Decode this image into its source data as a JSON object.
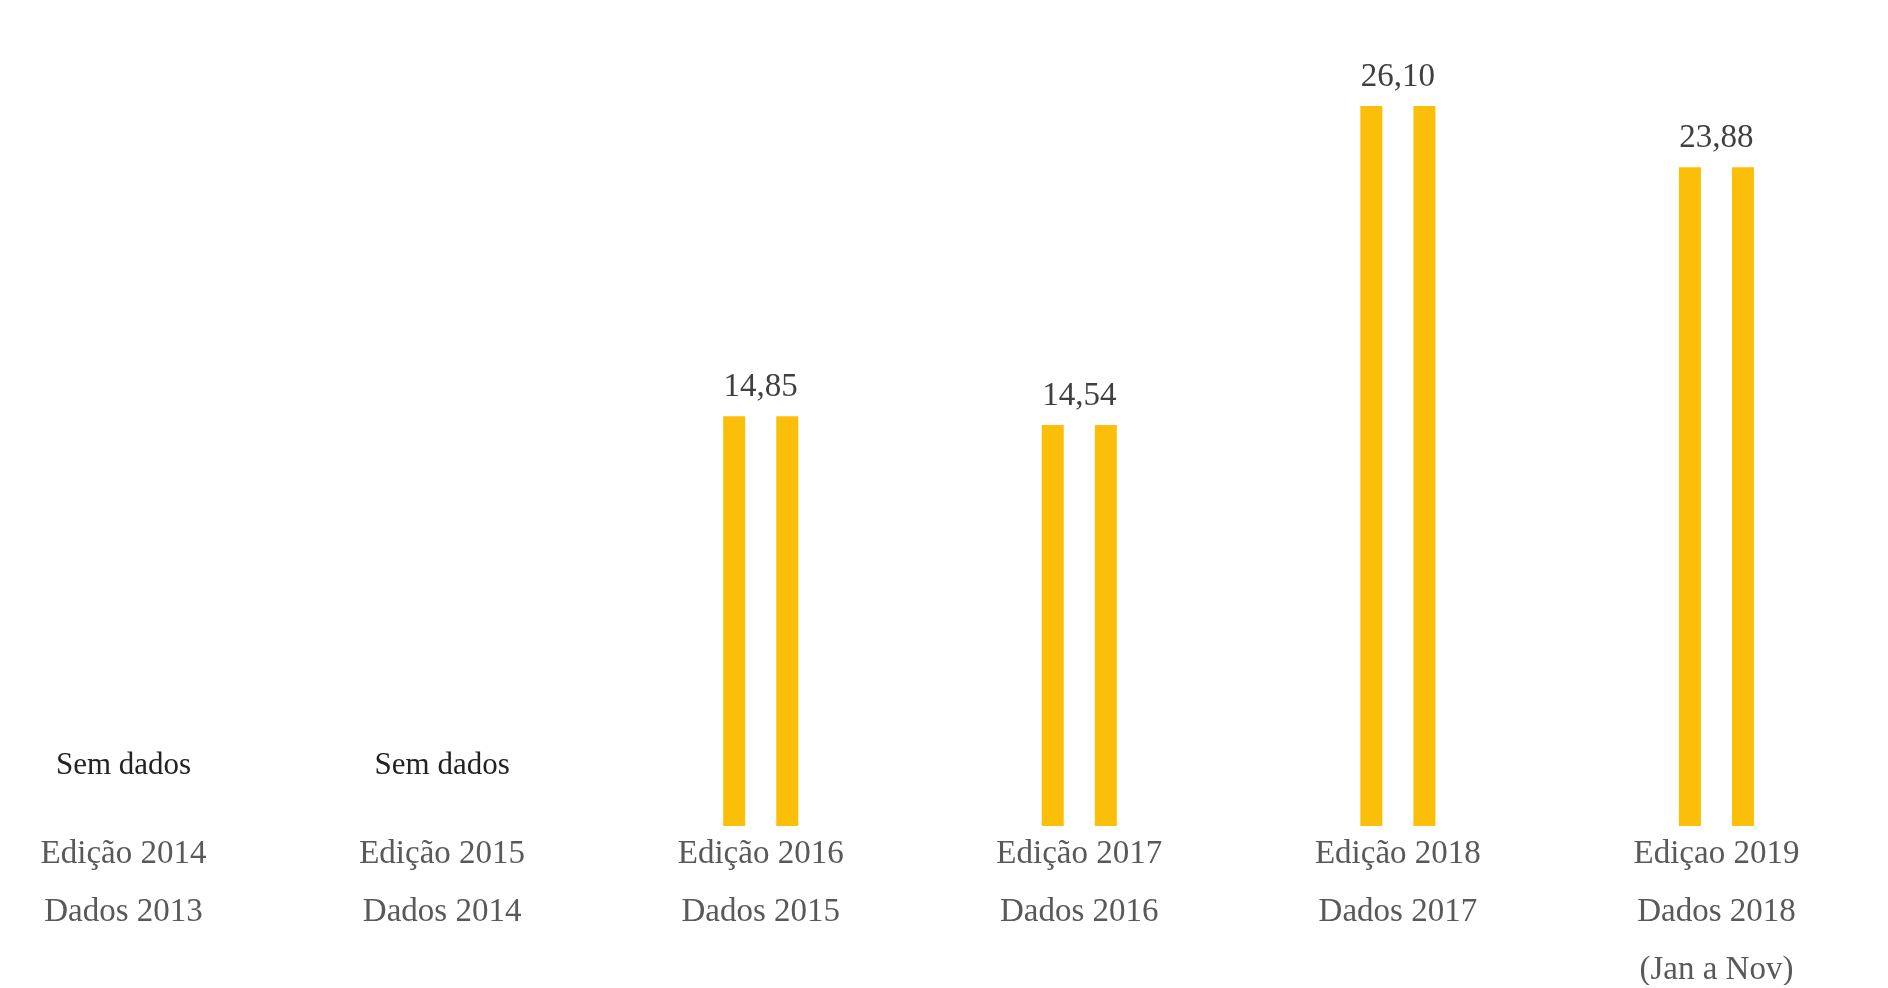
{
  "chart_data": {
    "type": "bar",
    "categories": [
      "Edição 2014\nDados 2013",
      "Edição 2015\nDados 2014",
      "Edição 2016\nDados 2015",
      "Edição 2017\nDados 2016",
      "Edição 2018\nDados 2017",
      "Ediçao 2019\nDados 2018\n(Jan a Nov)"
    ],
    "series": [
      {
        "color": "#fbbf0a",
        "values": [
          null,
          null,
          14.85,
          14.54,
          26.1,
          23.88
        ],
        "value_labels": [
          null,
          null,
          "14,85",
          "14,54",
          "26,10",
          "23,88"
        ]
      },
      {
        "color": "#fbbf0a",
        "values": [
          null,
          null,
          14.85,
          14.54,
          26.1,
          23.88
        ]
      }
    ],
    "annotations": [
      "Sem dados",
      "Sem dados"
    ],
    "grid": false
  }
}
